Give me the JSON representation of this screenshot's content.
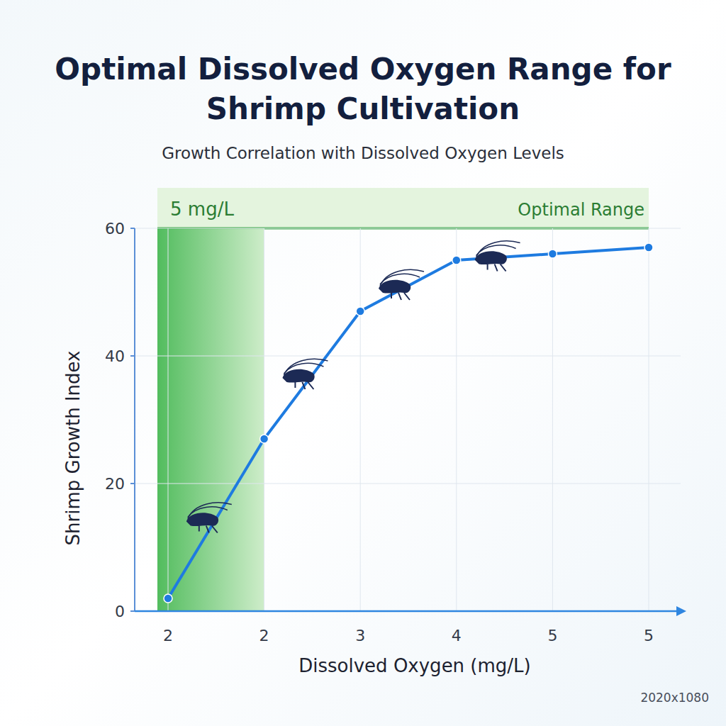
{
  "chart_data": {
    "type": "line",
    "title": "Optimal Dissolved Oxygen Range for Shrimp Cultivation",
    "subtitle": "Growth Correlation with Dissolved Oxygen Levels",
    "x_label": "Dissolved Oxygen (mg/L)",
    "y_label": "Shrimp Growth Index",
    "categories": [
      "2",
      "2",
      "3",
      "4",
      "5",
      "5"
    ],
    "values": [
      2,
      27,
      47,
      55,
      56,
      57
    ],
    "color": "#1e7be0",
    "ylim": [
      0,
      60
    ],
    "yticks": [
      0,
      20,
      40,
      60
    ],
    "grid": true,
    "marker": "circle",
    "annotations": [
      "5 mg/L",
      "Optimal Range"
    ],
    "footer": "2020x1080"
  }
}
